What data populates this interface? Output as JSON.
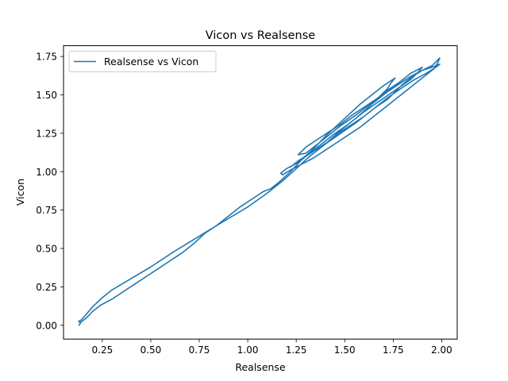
{
  "chart_data": {
    "type": "line",
    "title": "Vicon vs Realsense",
    "xlabel": "Realsense",
    "ylabel": "Vicon",
    "xlim": [
      0.05,
      2.08
    ],
    "ylim": [
      -0.09,
      1.82
    ],
    "xticks": [
      "0.25",
      "0.50",
      "0.75",
      "1.00",
      "1.25",
      "1.50",
      "1.75",
      "2.00"
    ],
    "yticks": [
      "0.00",
      "0.25",
      "0.50",
      "0.75",
      "1.00",
      "1.25",
      "1.50",
      "1.75"
    ],
    "legend": {
      "placement": "top-left"
    },
    "grid": false,
    "series": [
      {
        "name": "Realsense vs Vicon",
        "color": "#1f77b4",
        "x": [
          0.13,
          0.13,
          0.16,
          0.2,
          0.25,
          0.3,
          0.38,
          0.5,
          0.62,
          0.75,
          0.88,
          1.0,
          1.1,
          1.18,
          1.25,
          1.32,
          1.4,
          1.48,
          1.56,
          1.64,
          1.72,
          1.78,
          1.84,
          1.9,
          1.95,
          1.99,
          1.98,
          1.96,
          1.9,
          1.85,
          1.8,
          1.75,
          1.7,
          1.64,
          1.58,
          1.52,
          1.46,
          1.4,
          1.34,
          1.28,
          1.22,
          1.18,
          1.17,
          1.2,
          1.26,
          1.32,
          1.4,
          1.48,
          1.56,
          1.64,
          1.72,
          1.8,
          1.86,
          1.92,
          1.97,
          1.99,
          1.95,
          1.9,
          1.85,
          1.8,
          1.76,
          1.72,
          1.66,
          1.6,
          1.54,
          1.48,
          1.42,
          1.36,
          1.3,
          1.25,
          1.22,
          1.26,
          1.32,
          1.38,
          1.44,
          1.52,
          1.6,
          1.68,
          1.76,
          1.84,
          1.88,
          1.9,
          1.84,
          1.78,
          1.72,
          1.66,
          1.6,
          1.54,
          1.48,
          1.42,
          1.36,
          1.3,
          1.26,
          1.3,
          1.36,
          1.42,
          1.48,
          1.56,
          1.62,
          1.68,
          1.72,
          1.74,
          1.76,
          1.7,
          1.64,
          1.58,
          1.52,
          1.46,
          1.4,
          1.34,
          1.28,
          1.22,
          1.16,
          1.12,
          1.08,
          1.02,
          0.96,
          0.9,
          0.84,
          0.78,
          0.72,
          0.66,
          0.6,
          0.54,
          0.48,
          0.42,
          0.36,
          0.3,
          0.24,
          0.2,
          0.17,
          0.14,
          0.13
        ],
        "y": [
          0.03,
          0.02,
          0.06,
          0.12,
          0.18,
          0.23,
          0.29,
          0.38,
          0.48,
          0.58,
          0.68,
          0.77,
          0.86,
          0.94,
          1.02,
          1.1,
          1.18,
          1.27,
          1.35,
          1.44,
          1.52,
          1.57,
          1.62,
          1.66,
          1.69,
          1.74,
          1.71,
          1.67,
          1.61,
          1.56,
          1.51,
          1.46,
          1.41,
          1.35,
          1.29,
          1.24,
          1.19,
          1.14,
          1.09,
          1.05,
          1.01,
          0.98,
          0.99,
          1.02,
          1.06,
          1.12,
          1.18,
          1.25,
          1.32,
          1.4,
          1.48,
          1.55,
          1.6,
          1.64,
          1.68,
          1.7,
          1.68,
          1.66,
          1.62,
          1.57,
          1.52,
          1.47,
          1.42,
          1.36,
          1.31,
          1.26,
          1.2,
          1.15,
          1.1,
          1.06,
          1.03,
          1.07,
          1.12,
          1.18,
          1.24,
          1.31,
          1.39,
          1.46,
          1.53,
          1.6,
          1.65,
          1.68,
          1.64,
          1.58,
          1.53,
          1.47,
          1.42,
          1.37,
          1.31,
          1.26,
          1.21,
          1.16,
          1.11,
          1.12,
          1.18,
          1.24,
          1.3,
          1.37,
          1.43,
          1.49,
          1.54,
          1.58,
          1.61,
          1.56,
          1.5,
          1.44,
          1.37,
          1.3,
          1.23,
          1.15,
          1.08,
          1.0,
          0.93,
          0.89,
          0.87,
          0.82,
          0.77,
          0.71,
          0.65,
          0.6,
          0.53,
          0.47,
          0.42,
          0.37,
          0.32,
          0.27,
          0.22,
          0.17,
          0.13,
          0.09,
          0.05,
          0.02,
          0.0
        ]
      }
    ]
  }
}
